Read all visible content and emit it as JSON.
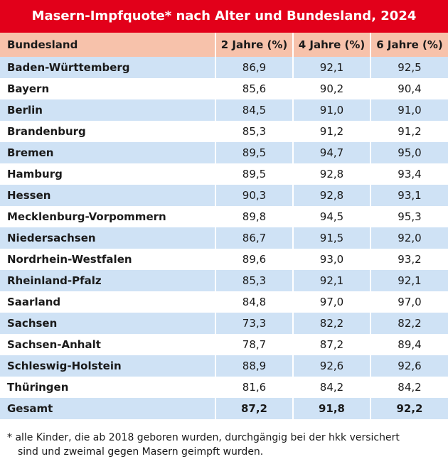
{
  "chart_data": {
    "type": "table",
    "title": "Masern-Impfquote* nach Alter und Bundesland, 2024",
    "columns": [
      "Bundesland",
      "2 Jahre (%)",
      "4 Jahre (%)",
      "6 Jahre (%)"
    ],
    "rows": [
      {
        "name": "Baden-Württemberg",
        "values": [
          "86,9",
          "92,1",
          "92,5"
        ]
      },
      {
        "name": "Bayern",
        "values": [
          "85,6",
          "90,2",
          "90,4"
        ]
      },
      {
        "name": "Berlin",
        "values": [
          "84,5",
          "91,0",
          "91,0"
        ]
      },
      {
        "name": "Brandenburg",
        "values": [
          "85,3",
          "91,2",
          "91,2"
        ]
      },
      {
        "name": "Bremen",
        "values": [
          "89,5",
          "94,7",
          "95,0"
        ]
      },
      {
        "name": "Hamburg",
        "values": [
          "89,5",
          "92,8",
          "93,4"
        ]
      },
      {
        "name": "Hessen",
        "values": [
          "90,3",
          "92,8",
          "93,1"
        ]
      },
      {
        "name": "Mecklenburg-Vorpommern",
        "values": [
          "89,8",
          "94,5",
          "95,3"
        ]
      },
      {
        "name": "Niedersachsen",
        "values": [
          "86,7",
          "91,5",
          "92,0"
        ]
      },
      {
        "name": "Nordrhein-Westfalen",
        "values": [
          "89,6",
          "93,0",
          "93,2"
        ]
      },
      {
        "name": "Rheinland-Pfalz",
        "values": [
          "85,3",
          "92,1",
          "92,1"
        ]
      },
      {
        "name": "Saarland",
        "values": [
          "84,8",
          "97,0",
          "97,0"
        ]
      },
      {
        "name": "Sachsen",
        "values": [
          "73,3",
          "82,2",
          "82,2"
        ]
      },
      {
        "name": "Sachsen-Anhalt",
        "values": [
          "78,7",
          "87,2",
          "89,4"
        ]
      },
      {
        "name": "Schleswig-Holstein",
        "values": [
          "88,9",
          "92,6",
          "92,6"
        ]
      },
      {
        "name": "Thüringen",
        "values": [
          "81,6",
          "84,2",
          "84,2"
        ]
      }
    ],
    "total": {
      "name": "Gesamt",
      "values": [
        "87,2",
        "91,8",
        "92,2"
      ]
    },
    "footnote": [
      "* alle Kinder, die ab 2018 geboren wurden, durchgängig bei der hkk versichert",
      "sind und zweimal gegen Masern geimpft wurden."
    ]
  },
  "colors": {
    "title_background": "#e2001a",
    "header_background": "#f7c2ab",
    "stripe_background": "#cfe2f5"
  }
}
